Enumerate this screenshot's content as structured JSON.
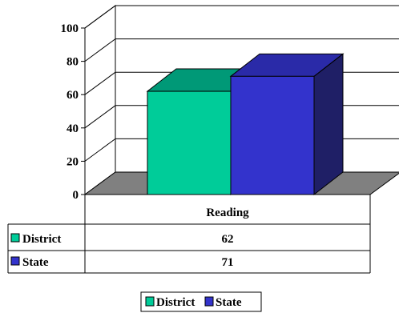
{
  "chart_data": {
    "type": "bar",
    "categories": [
      "Reading"
    ],
    "series": [
      {
        "name": "District",
        "values": [
          62
        ],
        "color": "#00CC99",
        "top_color": "#009977",
        "side_color": "#007A5E"
      },
      {
        "name": "State",
        "values": [
          71
        ],
        "color": "#3333CC",
        "top_color": "#2A2AA8",
        "side_color": "#1F1F66"
      }
    ],
    "y_ticks": [
      "0",
      "20",
      "40",
      "60",
      "80",
      "100"
    ],
    "ylim": [
      0,
      100
    ],
    "grid": true,
    "legend_position": "bottom",
    "data_table": true,
    "floor_color": "#808080"
  }
}
